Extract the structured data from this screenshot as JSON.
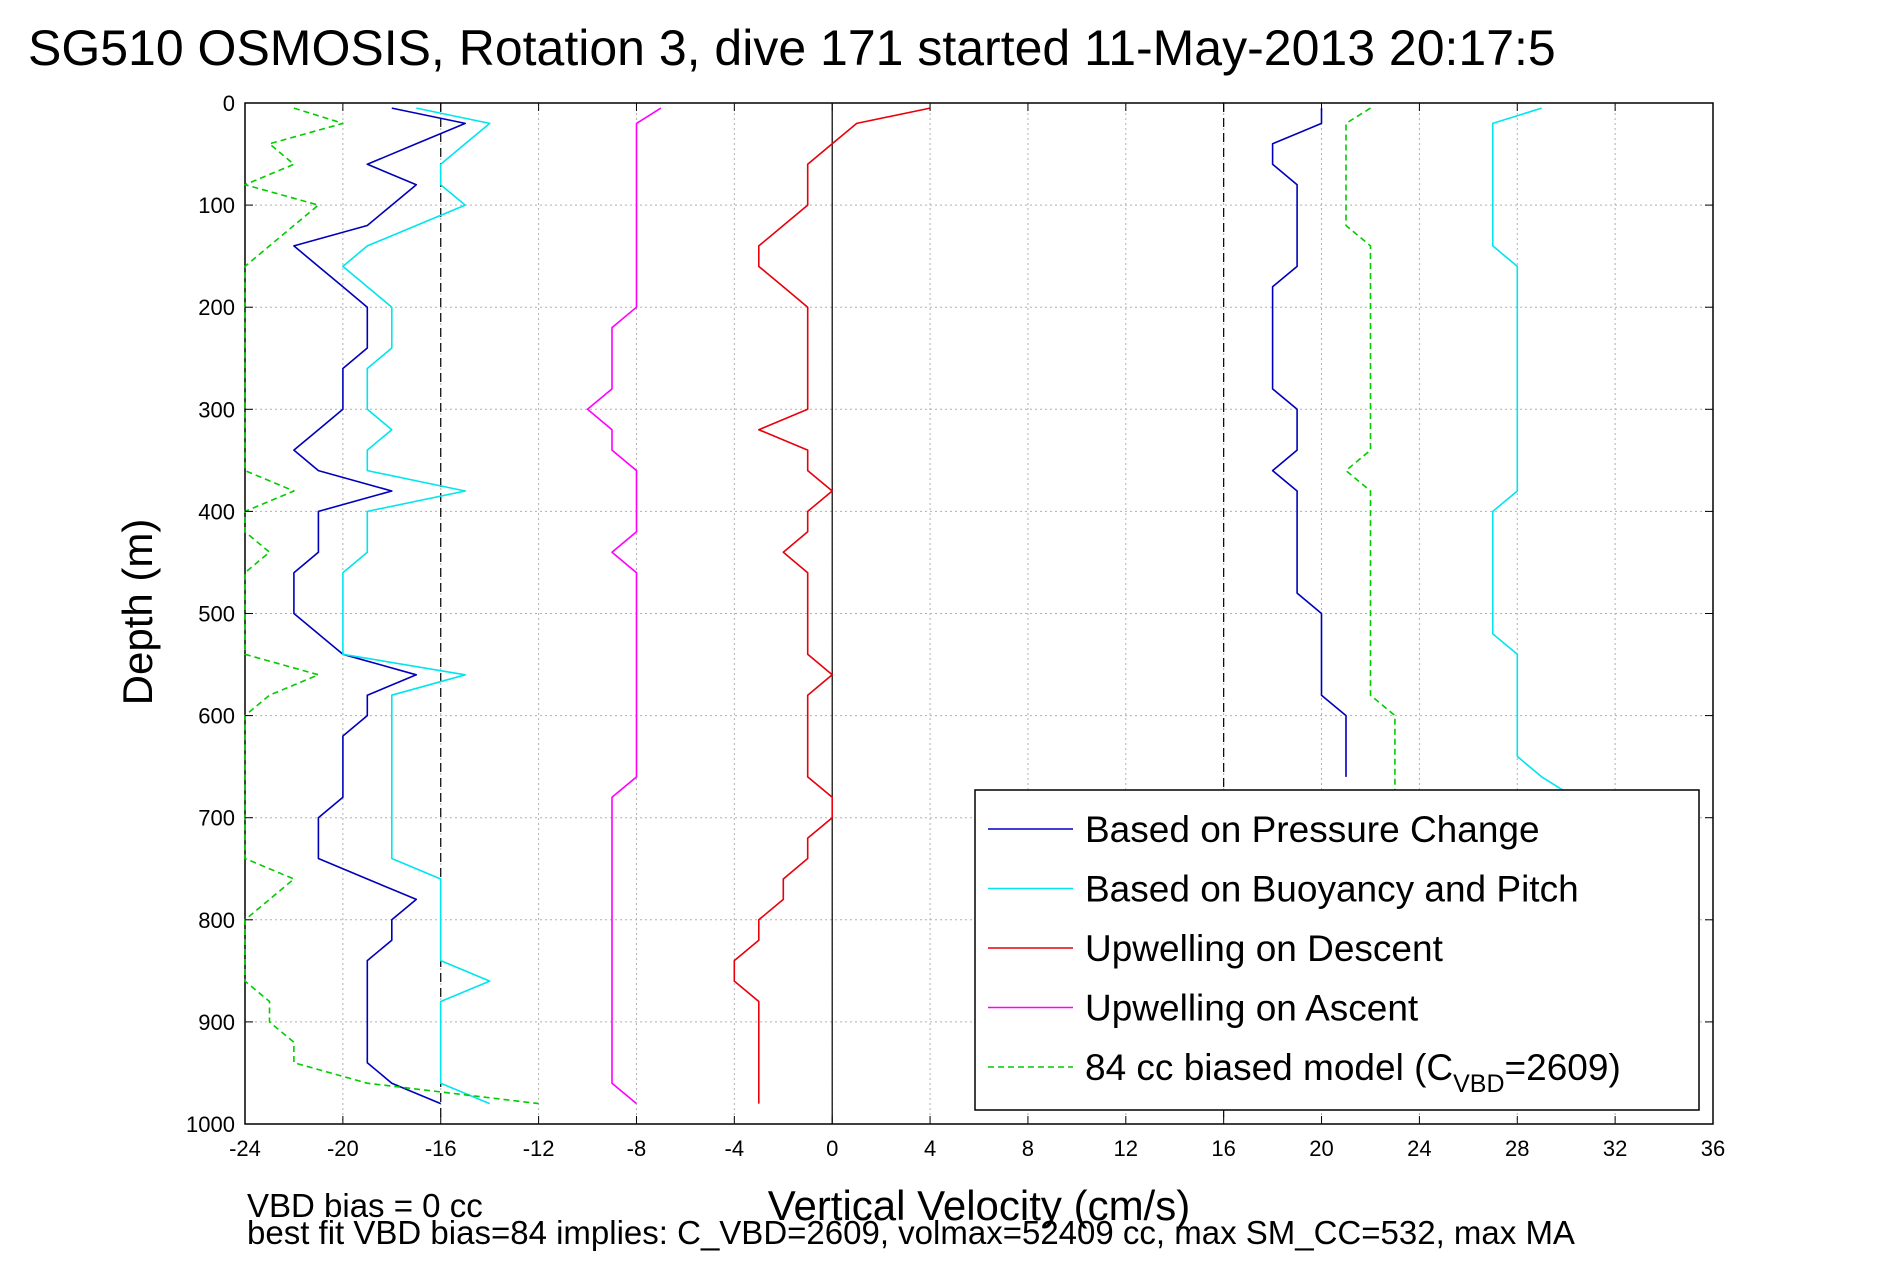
{
  "chart_data": {
    "type": "line",
    "title": "SG510 OSMOSIS, Rotation 3, dive 171 started 11-May-2013 20:17:5",
    "xlabel": "Vertical Velocity (cm/s)",
    "ylabel": "Depth (m)",
    "xlim": [
      -24,
      36
    ],
    "ylim": [
      1000,
      0
    ],
    "y_reversed": true,
    "grid": true,
    "xticks": [
      "-24",
      "-20",
      "-16",
      "-12",
      "-8",
      "-4",
      "0",
      "4",
      "8",
      "12",
      "16",
      "20",
      "24",
      "28",
      "32",
      "36"
    ],
    "yticks": [
      "0",
      "100",
      "200",
      "300",
      "400",
      "500",
      "600",
      "700",
      "800",
      "900",
      "1000"
    ],
    "xtick_values": [
      -24,
      -20,
      -16,
      -12,
      -8,
      -4,
      0,
      4,
      8,
      12,
      16,
      20,
      24,
      28,
      32,
      36
    ],
    "ytick_values": [
      0,
      100,
      200,
      300,
      400,
      500,
      600,
      700,
      800,
      900,
      1000
    ],
    "reference_lines": [
      {
        "x": -16,
        "style": "dashed"
      },
      {
        "x": 0,
        "style": "solid"
      },
      {
        "x": 16,
        "style": "dashed"
      }
    ],
    "legend": {
      "placement": "bottom-right",
      "entries": [
        {
          "text": "Based on Pressure Change",
          "color": "#0000bb",
          "dash": false
        },
        {
          "text": "Based on Buoyancy and Pitch",
          "color": "#00e5ee",
          "dash": false
        },
        {
          "text": "Upwelling on Descent",
          "color": "#e8000b",
          "dash": false
        },
        {
          "text": "Upwelling on Ascent",
          "color": "#ff00ff",
          "dash": false
        },
        {
          "text_main": "84 cc biased model (C",
          "text_sub": "VBD",
          "text_end": "=2609)",
          "color": "#00cc00",
          "dash": true
        }
      ]
    },
    "series": [
      {
        "name": "Based on Pressure Change",
        "color": "#0000bb",
        "dash": false,
        "depth": [
          5,
          20,
          40,
          60,
          80,
          100,
          120,
          140,
          160,
          180,
          200,
          220,
          240,
          260,
          280,
          300,
          320,
          340,
          360,
          380,
          400,
          420,
          440,
          460,
          480,
          500,
          520,
          540,
          560,
          580,
          600,
          620,
          640,
          660,
          680,
          700,
          720,
          740,
          760,
          780,
          800,
          820,
          840,
          860,
          880,
          900,
          920,
          940,
          960,
          980
        ],
        "x": [
          -18,
          -15,
          -17,
          -19,
          -17,
          -18,
          -19,
          -22,
          -21,
          -20,
          -19,
          -19,
          -19,
          -20,
          -20,
          -20,
          -21,
          -22,
          -21,
          -18,
          -21,
          -21,
          -21,
          -22,
          -22,
          -22,
          -21,
          -20,
          -17,
          -19,
          -19,
          -20,
          -20,
          -20,
          -20,
          -21,
          -21,
          -21,
          -19,
          -17,
          -18,
          -18,
          -19,
          -19,
          -19,
          -19,
          -19,
          -19,
          -18,
          -16
        ]
      },
      {
        "name": "Based on Buoyancy and Pitch",
        "color": "#00e5ee",
        "dash": false,
        "depth": [
          5,
          20,
          40,
          60,
          80,
          100,
          120,
          140,
          160,
          180,
          200,
          220,
          240,
          260,
          280,
          300,
          320,
          340,
          360,
          380,
          400,
          420,
          440,
          460,
          480,
          500,
          520,
          540,
          560,
          580,
          600,
          620,
          640,
          660,
          680,
          700,
          720,
          740,
          760,
          780,
          800,
          820,
          840,
          860,
          880,
          900,
          920,
          940,
          960,
          980
        ],
        "x": [
          -17,
          -14,
          -15,
          -16,
          -16,
          -15,
          -17,
          -19,
          -20,
          -19,
          -18,
          -18,
          -18,
          -19,
          -19,
          -19,
          -18,
          -19,
          -19,
          -15,
          -19,
          -19,
          -19,
          -20,
          -20,
          -20,
          -20,
          -20,
          -15,
          -18,
          -18,
          -18,
          -18,
          -18,
          -18,
          -18,
          -18,
          -18,
          -16,
          -16,
          -16,
          -16,
          -16,
          -14,
          -16,
          -16,
          -16,
          -16,
          -16,
          -14
        ]
      },
      {
        "name": "Upwelling on Descent",
        "color": "#e8000b",
        "dash": false,
        "depth": [
          5,
          20,
          40,
          60,
          80,
          100,
          120,
          140,
          160,
          180,
          200,
          220,
          240,
          260,
          280,
          300,
          320,
          340,
          360,
          380,
          400,
          420,
          440,
          460,
          480,
          500,
          520,
          540,
          560,
          580,
          600,
          620,
          640,
          660,
          680,
          700,
          720,
          740,
          760,
          780,
          800,
          820,
          840,
          860,
          880,
          900,
          920,
          940,
          960,
          980
        ],
        "x": [
          4,
          1,
          0,
          -1,
          -1,
          -1,
          -2,
          -3,
          -3,
          -2,
          -1,
          -1,
          -1,
          -1,
          -1,
          -1,
          -3,
          -1,
          -1,
          0,
          -1,
          -1,
          -2,
          -1,
          -1,
          -1,
          -1,
          -1,
          0,
          -1,
          -1,
          -1,
          -1,
          -1,
          0,
          0,
          -1,
          -1,
          -2,
          -2,
          -3,
          -3,
          -4,
          -4,
          -3,
          -3,
          -3,
          -3,
          -3,
          -3
        ]
      },
      {
        "name": "Upwelling on Ascent",
        "color": "#ff00ff",
        "dash": false,
        "depth": [
          5,
          20,
          40,
          60,
          80,
          100,
          120,
          140,
          160,
          180,
          200,
          220,
          240,
          260,
          280,
          300,
          320,
          340,
          360,
          380,
          400,
          420,
          440,
          460,
          480,
          500,
          520,
          540,
          560,
          580,
          600,
          620,
          640,
          660,
          680,
          700,
          720,
          740,
          760,
          780,
          800,
          820,
          840,
          860,
          880,
          900,
          920,
          940,
          960,
          980
        ],
        "x": [
          -7,
          -8,
          -8,
          -8,
          -8,
          -8,
          -8,
          -8,
          -8,
          -8,
          -8,
          -9,
          -9,
          -9,
          -9,
          -10,
          -9,
          -9,
          -8,
          -8,
          -8,
          -8,
          -9,
          -8,
          -8,
          -8,
          -8,
          -8,
          -8,
          -8,
          -8,
          -8,
          -8,
          -8,
          -9,
          -9,
          -9,
          -9,
          -9,
          -9,
          -9,
          -9,
          -9,
          -9,
          -9,
          -9,
          -9,
          -9,
          -9,
          -8
        ]
      },
      {
        "name": "84 cc biased model (C_VBD=2609)",
        "color": "#00cc00",
        "dash": true,
        "depth": [
          5,
          20,
          40,
          60,
          80,
          100,
          120,
          140,
          160,
          180,
          200,
          220,
          240,
          260,
          280,
          300,
          320,
          340,
          360,
          380,
          400,
          420,
          440,
          460,
          480,
          500,
          520,
          540,
          560,
          580,
          600,
          620,
          640,
          660,
          680,
          700,
          720,
          740,
          760,
          780,
          800,
          820,
          840,
          860,
          880,
          900,
          920,
          940,
          960,
          980
        ],
        "x": [
          -22,
          -20,
          -23,
          -22,
          -24,
          -21,
          -22,
          -23,
          -24,
          -24,
          -24,
          -24,
          -24,
          -24,
          -24,
          -24,
          -24,
          -24,
          -24,
          -22,
          -24,
          -24,
          -23,
          -24,
          -24,
          -24,
          -24,
          -24,
          -21,
          -23,
          -24,
          -24,
          -24,
          -24,
          -24,
          -24,
          -24,
          -24,
          -22,
          -23,
          -24,
          -24,
          -24,
          -24,
          -23,
          -23,
          -22,
          -22,
          -19,
          -12
        ]
      },
      {
        "name": "Based on Pressure Change",
        "color": "#0000bb",
        "dash": false,
        "depth": [
          5,
          20,
          40,
          60,
          80,
          100,
          120,
          140,
          160,
          180,
          200,
          220,
          240,
          260,
          280,
          300,
          320,
          340,
          360,
          380,
          400,
          420,
          440,
          460,
          480,
          500,
          520,
          540,
          560,
          580,
          600,
          620,
          640,
          660
        ],
        "x": [
          20,
          20,
          18,
          18,
          19,
          19,
          19,
          19,
          19,
          18,
          18,
          18,
          18,
          18,
          18,
          19,
          19,
          19,
          18,
          19,
          19,
          19,
          19,
          19,
          19,
          20,
          20,
          20,
          20,
          20,
          21,
          21,
          21,
          21
        ]
      },
      {
        "name": "Based on Buoyancy and Pitch",
        "color": "#00e5ee",
        "dash": false,
        "depth": [
          5,
          20,
          40,
          60,
          80,
          100,
          120,
          140,
          160,
          180,
          200,
          220,
          240,
          260,
          280,
          300,
          320,
          340,
          360,
          380,
          400,
          420,
          440,
          460,
          480,
          500,
          520,
          540,
          560,
          580,
          600,
          620,
          640,
          660,
          675
        ],
        "x": [
          29,
          27,
          27,
          27,
          27,
          27,
          27,
          27,
          28,
          28,
          28,
          28,
          28,
          28,
          28,
          28,
          28,
          28,
          28,
          28,
          27,
          27,
          27,
          27,
          27,
          27,
          27,
          28,
          28,
          28,
          28,
          28,
          28,
          29,
          30
        ]
      },
      {
        "name": "84 cc biased model (C_VBD=2609)",
        "color": "#00cc00",
        "dash": true,
        "depth": [
          5,
          20,
          40,
          60,
          80,
          100,
          120,
          140,
          160,
          180,
          200,
          220,
          240,
          260,
          280,
          300,
          320,
          340,
          360,
          380,
          400,
          420,
          440,
          460,
          480,
          500,
          520,
          540,
          560,
          580,
          600,
          620,
          640,
          660,
          675
        ],
        "x": [
          22,
          21,
          21,
          21,
          21,
          21,
          21,
          22,
          22,
          22,
          22,
          22,
          22,
          22,
          22,
          22,
          22,
          22,
          21,
          22,
          22,
          22,
          22,
          22,
          22,
          22,
          22,
          22,
          22,
          22,
          23,
          23,
          23,
          23,
          23
        ]
      }
    ]
  },
  "footer": {
    "line1": "VBD bias = 0 cc",
    "line2": "best fit VBD bias=84 implies: C_VBD=2609, volmax=52409 cc, max SM_CC=532, max MA"
  }
}
